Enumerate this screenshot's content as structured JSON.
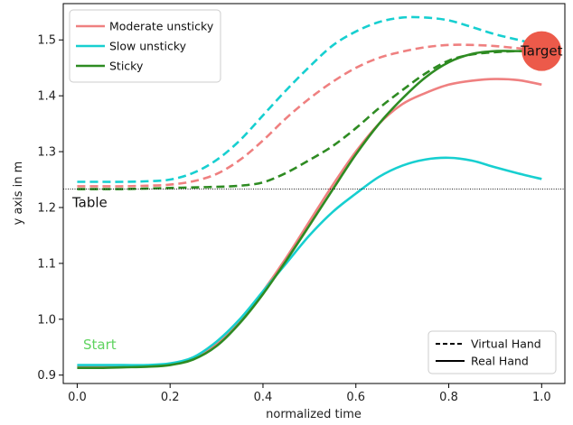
{
  "chart_data": {
    "type": "line",
    "xlabel": "normalized time",
    "ylabel": "y axis in m",
    "xlim": [
      -0.03,
      1.05
    ],
    "ylim": [
      0.885,
      1.565
    ],
    "xticks": [
      0.0,
      0.2,
      0.4,
      0.6,
      0.8,
      1.0
    ],
    "xtick_labels": [
      "0.0",
      "0.2",
      "0.4",
      "0.6",
      "0.8",
      "1.0"
    ],
    "yticks": [
      0.9,
      1.0,
      1.1,
      1.2,
      1.3,
      1.4,
      1.5
    ],
    "ytick_labels": [
      "0.9",
      "1.0",
      "1.1",
      "1.2",
      "1.3",
      "1.4",
      "1.5"
    ],
    "grid": false,
    "legend_condition": {
      "placement": "top-left",
      "entries": [
        {
          "label": "Moderate unsticky",
          "color": "#ef8080"
        },
        {
          "label": "Slow unsticky",
          "color": "#17cfd0"
        },
        {
          "label": "Sticky",
          "color": "#2e8b22"
        }
      ]
    },
    "legend_hand": {
      "placement": "bottom-right",
      "entries": [
        {
          "label": "Virtual Hand",
          "style": "dashed"
        },
        {
          "label": "Real Hand",
          "style": "solid"
        }
      ]
    },
    "table_line": {
      "y": 1.233,
      "label": "Table"
    },
    "start_label": {
      "text": "Start",
      "color": "#5fd35f"
    },
    "target": {
      "x": 1.0,
      "y": 1.48,
      "label": "Target",
      "color": "#ec5a4a"
    },
    "x": [
      0.0,
      0.05,
      0.1,
      0.15,
      0.2,
      0.25,
      0.3,
      0.35,
      0.4,
      0.45,
      0.5,
      0.55,
      0.6,
      0.65,
      0.7,
      0.75,
      0.8,
      0.85,
      0.9,
      0.95,
      1.0
    ],
    "series": [
      {
        "name": "Moderate unsticky",
        "hand": "Virtual Hand",
        "color": "#ef8080",
        "dash": true,
        "values": [
          1.238,
          1.238,
          1.238,
          1.239,
          1.241,
          1.247,
          1.26,
          1.285,
          1.32,
          1.36,
          1.395,
          1.425,
          1.45,
          1.468,
          1.479,
          1.487,
          1.491,
          1.491,
          1.489,
          1.485,
          1.482
        ]
      },
      {
        "name": "Slow unsticky",
        "hand": "Virtual Hand",
        "color": "#17cfd0",
        "dash": true,
        "values": [
          1.246,
          1.246,
          1.246,
          1.247,
          1.25,
          1.262,
          1.285,
          1.32,
          1.365,
          1.41,
          1.452,
          1.49,
          1.515,
          1.532,
          1.54,
          1.54,
          1.535,
          1.523,
          1.51,
          1.5,
          1.49
        ]
      },
      {
        "name": "Sticky",
        "hand": "Virtual Hand",
        "color": "#2e8b22",
        "dash": true,
        "values": [
          1.233,
          1.233,
          1.233,
          1.234,
          1.235,
          1.236,
          1.237,
          1.239,
          1.245,
          1.262,
          1.285,
          1.31,
          1.342,
          1.378,
          1.41,
          1.44,
          1.463,
          1.474,
          1.478,
          1.48,
          1.48
        ]
      },
      {
        "name": "Moderate unsticky",
        "hand": "Real Hand",
        "color": "#ef8080",
        "dash": false,
        "values": [
          0.916,
          0.916,
          0.916,
          0.917,
          0.92,
          0.93,
          0.955,
          0.995,
          1.05,
          1.11,
          1.175,
          1.24,
          1.3,
          1.35,
          1.385,
          1.405,
          1.42,
          1.427,
          1.43,
          1.428,
          1.42
        ]
      },
      {
        "name": "Slow unsticky",
        "hand": "Real Hand",
        "color": "#17cfd0",
        "dash": false,
        "values": [
          0.918,
          0.918,
          0.918,
          0.918,
          0.921,
          0.932,
          0.96,
          1.0,
          1.05,
          1.1,
          1.15,
          1.192,
          1.225,
          1.255,
          1.275,
          1.286,
          1.289,
          1.284,
          1.272,
          1.261,
          1.251
        ]
      },
      {
        "name": "Sticky",
        "hand": "Real Hand",
        "color": "#2e8b22",
        "dash": false,
        "values": [
          0.913,
          0.913,
          0.914,
          0.915,
          0.918,
          0.928,
          0.952,
          0.993,
          1.045,
          1.105,
          1.168,
          1.232,
          1.295,
          1.35,
          1.395,
          1.433,
          1.46,
          1.475,
          1.48,
          1.48,
          1.48
        ]
      }
    ]
  }
}
